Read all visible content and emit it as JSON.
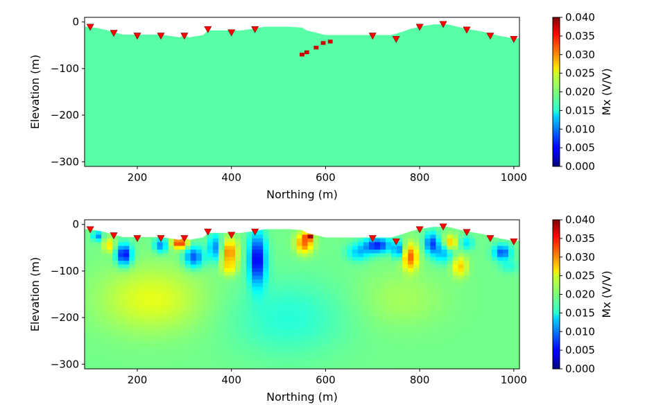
{
  "chart_data": [
    {
      "type": "heatmap",
      "title": "",
      "xlabel": "Northing (m)",
      "ylabel": "Elevation (m)",
      "xlim": [
        88,
        1012
      ],
      "ylim": [
        -310,
        10
      ],
      "xticks": [
        200,
        400,
        600,
        800,
        1000
      ],
      "yticks": [
        0,
        -100,
        -200,
        -300
      ],
      "xtick_labels": [
        "200",
        "400",
        "600",
        "800",
        "1000"
      ],
      "ytick_labels": [
        "0",
        "−100",
        "−200",
        "−300"
      ],
      "colorbar": {
        "label": "Mx (V/V)",
        "colormap": "jet",
        "range": [
          0.0,
          0.04
        ],
        "ticks": [
          0.0,
          0.005,
          0.01,
          0.015,
          0.02,
          0.025,
          0.03,
          0.035,
          0.04
        ],
        "tick_labels": [
          "0.000",
          "0.005",
          "0.010",
          "0.015",
          "0.020",
          "0.025",
          "0.030",
          "0.035",
          "0.040"
        ]
      },
      "background_value": 0.0185,
      "topography": [
        [
          88,
          -10
        ],
        [
          110,
          -12
        ],
        [
          130,
          -16
        ],
        [
          150,
          -22
        ],
        [
          170,
          -27
        ],
        [
          250,
          -27
        ],
        [
          270,
          -30
        ],
        [
          290,
          -33
        ],
        [
          300,
          -28
        ],
        [
          310,
          -33
        ],
        [
          340,
          -28
        ],
        [
          350,
          -18
        ],
        [
          400,
          -18
        ],
        [
          420,
          -18
        ],
        [
          450,
          -14
        ],
        [
          470,
          -10
        ],
        [
          520,
          -10
        ],
        [
          550,
          -12
        ],
        [
          560,
          -18
        ],
        [
          600,
          -28
        ],
        [
          650,
          -28
        ],
        [
          700,
          -28
        ],
        [
          740,
          -28
        ],
        [
          760,
          -22
        ],
        [
          780,
          -15
        ],
        [
          800,
          -10
        ],
        [
          830,
          -5
        ],
        [
          860,
          -5
        ],
        [
          880,
          -10
        ],
        [
          900,
          -15
        ],
        [
          930,
          -20
        ],
        [
          950,
          -25
        ],
        [
          970,
          -30
        ],
        [
          1000,
          -35
        ],
        [
          1012,
          -35
        ]
      ],
      "receivers": [
        [
          100,
          -12
        ],
        [
          150,
          -25
        ],
        [
          200,
          -31
        ],
        [
          250,
          -31
        ],
        [
          300,
          -31
        ],
        [
          350,
          -17
        ],
        [
          400,
          -24
        ],
        [
          450,
          -17
        ],
        [
          700,
          -31
        ],
        [
          750,
          -38
        ],
        [
          800,
          -12
        ],
        [
          850,
          -6
        ],
        [
          900,
          -18
        ],
        [
          950,
          -31
        ],
        [
          1000,
          -38
        ]
      ],
      "receiver_color": "#ff0000",
      "anomalies": [
        {
          "x": 560,
          "y": -65,
          "value": 0.037,
          "size": 10
        },
        {
          "x": 580,
          "y": -55,
          "value": 0.037,
          "size": 10
        },
        {
          "x": 595,
          "y": -45,
          "value": 0.037,
          "size": 10
        },
        {
          "x": 610,
          "y": -42,
          "value": 0.037,
          "size": 10
        },
        {
          "x": 550,
          "y": -70,
          "value": 0.037,
          "size": 10
        }
      ]
    },
    {
      "type": "heatmap",
      "title": "",
      "xlabel": "Northing (m)",
      "ylabel": "Elevation (m)",
      "xlim": [
        88,
        1012
      ],
      "ylim": [
        -310,
        10
      ],
      "xticks": [
        200,
        400,
        600,
        800,
        1000
      ],
      "yticks": [
        0,
        -100,
        -200,
        -300
      ],
      "xtick_labels": [
        "200",
        "400",
        "600",
        "800",
        "1000"
      ],
      "ytick_labels": [
        "0",
        "−100",
        "−200",
        "−300"
      ],
      "colorbar": {
        "label": "Mx (V/V)",
        "colormap": "jet",
        "range": [
          0.0,
          0.04
        ],
        "ticks": [
          0.0,
          0.005,
          0.01,
          0.015,
          0.02,
          0.025,
          0.03,
          0.035,
          0.04
        ],
        "tick_labels": [
          "0.000",
          "0.005",
          "0.010",
          "0.015",
          "0.020",
          "0.025",
          "0.030",
          "0.035",
          "0.040"
        ]
      },
      "background_value": 0.0195,
      "topography": [
        [
          88,
          -10
        ],
        [
          110,
          -12
        ],
        [
          130,
          -16
        ],
        [
          150,
          -22
        ],
        [
          170,
          -27
        ],
        [
          250,
          -27
        ],
        [
          270,
          -30
        ],
        [
          290,
          -33
        ],
        [
          300,
          -28
        ],
        [
          310,
          -33
        ],
        [
          340,
          -28
        ],
        [
          350,
          -18
        ],
        [
          400,
          -18
        ],
        [
          420,
          -18
        ],
        [
          450,
          -14
        ],
        [
          470,
          -10
        ],
        [
          520,
          -10
        ],
        [
          550,
          -12
        ],
        [
          560,
          -18
        ],
        [
          600,
          -28
        ],
        [
          650,
          -28
        ],
        [
          700,
          -28
        ],
        [
          740,
          -28
        ],
        [
          760,
          -22
        ],
        [
          780,
          -15
        ],
        [
          800,
          -10
        ],
        [
          830,
          -5
        ],
        [
          860,
          -5
        ],
        [
          880,
          -10
        ],
        [
          900,
          -15
        ],
        [
          930,
          -20
        ],
        [
          950,
          -25
        ],
        [
          970,
          -30
        ],
        [
          1000,
          -35
        ],
        [
          1012,
          -35
        ]
      ],
      "receivers": [
        [
          100,
          -12
        ],
        [
          150,
          -25
        ],
        [
          200,
          -31
        ],
        [
          250,
          -31
        ],
        [
          300,
          -31
        ],
        [
          350,
          -17
        ],
        [
          400,
          -24
        ],
        [
          450,
          -17
        ],
        [
          700,
          -31
        ],
        [
          750,
          -38
        ],
        [
          800,
          -12
        ],
        [
          850,
          -6
        ],
        [
          900,
          -18
        ],
        [
          950,
          -31
        ],
        [
          1000,
          -38
        ]
      ],
      "receiver_color": "#ff0000",
      "anomalies": [
        {
          "x": 230,
          "y": -160,
          "value": 0.024,
          "sx": 110,
          "sy": 70
        },
        {
          "x": 760,
          "y": -160,
          "value": 0.0215,
          "sx": 90,
          "sy": 60
        },
        {
          "x": 520,
          "y": -200,
          "value": 0.0165,
          "sx": 120,
          "sy": 80
        },
        {
          "x": 172,
          "y": -65,
          "value": 0.004,
          "sx": 16,
          "sy": 22
        },
        {
          "x": 140,
          "y": -45,
          "value": 0.026,
          "sx": 12,
          "sy": 15
        },
        {
          "x": 115,
          "y": -25,
          "value": 0.01,
          "sx": 10,
          "sy": 10
        },
        {
          "x": 290,
          "y": -40,
          "value": 0.034,
          "sx": 16,
          "sy": 12
        },
        {
          "x": 320,
          "y": -70,
          "value": 0.008,
          "sx": 20,
          "sy": 22
        },
        {
          "x": 250,
          "y": -45,
          "value": 0.01,
          "sx": 14,
          "sy": 15
        },
        {
          "x": 365,
          "y": -50,
          "value": 0.01,
          "sx": 14,
          "sy": 28
        },
        {
          "x": 395,
          "y": -60,
          "value": 0.03,
          "sx": 18,
          "sy": 28
        },
        {
          "x": 395,
          "y": -95,
          "value": 0.024,
          "sx": 16,
          "sy": 16
        },
        {
          "x": 455,
          "y": -75,
          "value": 0.004,
          "sx": 18,
          "sy": 55
        },
        {
          "x": 555,
          "y": -40,
          "value": 0.031,
          "sx": 18,
          "sy": 22
        },
        {
          "x": 565,
          "y": -25,
          "value": 0.036,
          "sx": 8,
          "sy": 8
        },
        {
          "x": 710,
          "y": -45,
          "value": 0.006,
          "sx": 28,
          "sy": 16
        },
        {
          "x": 670,
          "y": -60,
          "value": 0.013,
          "sx": 24,
          "sy": 18
        },
        {
          "x": 780,
          "y": -70,
          "value": 0.031,
          "sx": 16,
          "sy": 28
        },
        {
          "x": 755,
          "y": -55,
          "value": 0.01,
          "sx": 12,
          "sy": 18
        },
        {
          "x": 825,
          "y": -40,
          "value": 0.008,
          "sx": 14,
          "sy": 22
        },
        {
          "x": 865,
          "y": -40,
          "value": 0.029,
          "sx": 14,
          "sy": 16
        },
        {
          "x": 850,
          "y": -60,
          "value": 0.012,
          "sx": 22,
          "sy": 22
        },
        {
          "x": 885,
          "y": -90,
          "value": 0.027,
          "sx": 16,
          "sy": 22
        },
        {
          "x": 900,
          "y": -40,
          "value": 0.014,
          "sx": 14,
          "sy": 14
        },
        {
          "x": 975,
          "y": -60,
          "value": 0.008,
          "sx": 18,
          "sy": 16
        },
        {
          "x": 990,
          "y": -90,
          "value": 0.0165,
          "sx": 20,
          "sy": 14
        }
      ]
    }
  ]
}
